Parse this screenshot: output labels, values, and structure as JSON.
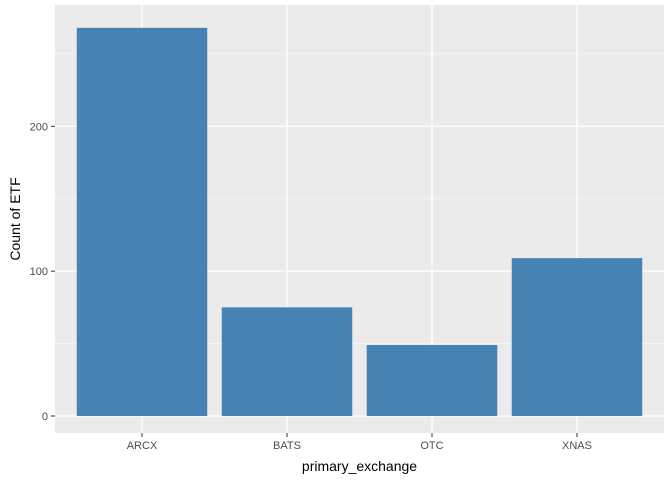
{
  "chart_data": {
    "type": "bar",
    "title": "",
    "xlabel": "primary_exchange",
    "ylabel": "Count of ETF",
    "categories": [
      "ARCX",
      "BATS",
      "OTC",
      "XNAS"
    ],
    "values": [
      268,
      75,
      49,
      109
    ],
    "ylim": [
      0,
      281
    ],
    "yticks": [
      0,
      100,
      200
    ],
    "grid": true,
    "legend": "none",
    "colors": {
      "bar": "#4682B4",
      "panel": "#EBEBEB",
      "grid_major": "#FFFFFF",
      "grid_minor": "#F5F5F5"
    }
  }
}
